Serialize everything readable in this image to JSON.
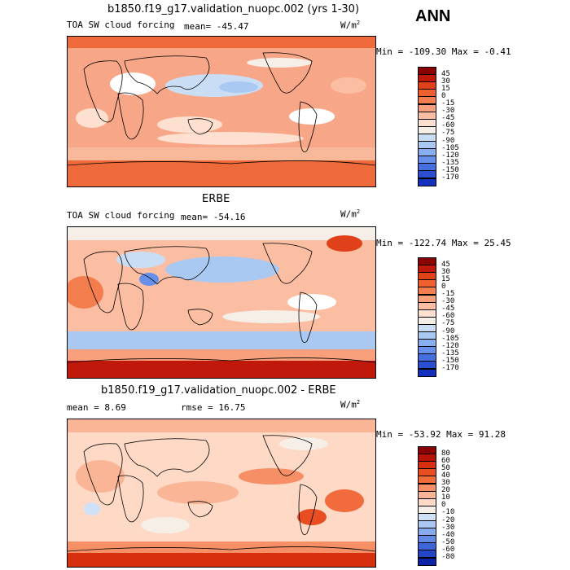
{
  "season": "ANN",
  "panels": [
    {
      "title": "b1850.f19_g17.validation_nuopc.002 (yrs 1-30)",
      "left_label": "TOA SW cloud forcing",
      "mean_label": "mean= -45.47",
      "units": "W/m",
      "units_exp": "2",
      "minmax": "Min = -109.30 Max =  -0.41",
      "colorbar": {
        "ticks": [
          "45",
          "30",
          "15",
          "0",
          "-15",
          "-30",
          "-45",
          "-60",
          "-75",
          "-90",
          "-105",
          "-120",
          "-135",
          "-150",
          "-170"
        ],
        "colors": [
          "#8b0000",
          "#c0180a",
          "#e0401a",
          "#ee6030",
          "#f47d4d",
          "#f8a07c",
          "#fbbea2",
          "#fde0cf",
          "#f6efe8",
          "#c9def5",
          "#a9c8f2",
          "#86aef0",
          "#6690ea",
          "#4570e0",
          "#2a4fd2",
          "#1430bc"
        ]
      }
    },
    {
      "title": "ERBE",
      "left_label": "TOA SW cloud forcing",
      "mean_label": "mean= -54.16",
      "units": "W/m",
      "units_exp": "2",
      "minmax": "Min = -122.74 Max =  25.45",
      "colorbar": {
        "ticks": [
          "45",
          "30",
          "15",
          "0",
          "-15",
          "-30",
          "-45",
          "-60",
          "-75",
          "-90",
          "-105",
          "-120",
          "-135",
          "-150",
          "-170"
        ],
        "colors": [
          "#8b0000",
          "#c0180a",
          "#e0401a",
          "#ee6030",
          "#f47d4d",
          "#f8a07c",
          "#fbbea2",
          "#fde0cf",
          "#f6efe8",
          "#c9def5",
          "#a9c8f2",
          "#86aef0",
          "#6690ea",
          "#4570e0",
          "#2a4fd2",
          "#1430bc"
        ]
      }
    },
    {
      "title": "b1850.f19_g17.validation_nuopc.002 - ERBE",
      "mean_text": "mean =    8.69",
      "rmse_text": "rmse =   16.75",
      "units": "W/m",
      "units_exp": "2",
      "minmax": "Min = -53.92 Max =  91.28",
      "colorbar": {
        "ticks": [
          "80",
          "60",
          "50",
          "40",
          "30",
          "20",
          "10",
          "0",
          "-10",
          "-20",
          "-30",
          "-40",
          "-50",
          "-60",
          "-80"
        ],
        "colors": [
          "#8b0000",
          "#b81208",
          "#d8300f",
          "#e94e22",
          "#f26b3d",
          "#f78f66",
          "#fab596",
          "#fdd9c6",
          "#f6efe8",
          "#cfe1f6",
          "#acc8f2",
          "#86aaee",
          "#6189e6",
          "#3f66d8",
          "#2445c6",
          "#0e22a8"
        ]
      }
    }
  ]
}
